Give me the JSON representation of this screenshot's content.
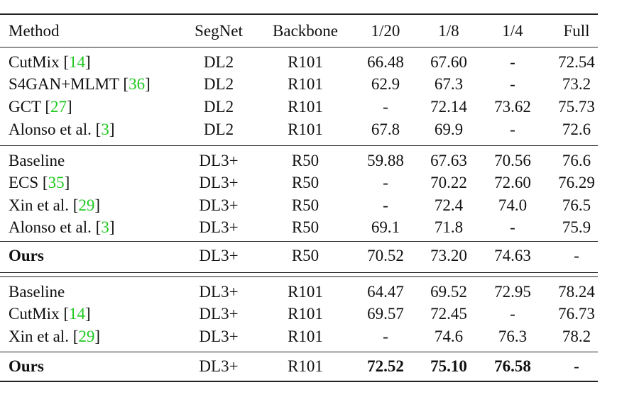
{
  "table": {
    "header": [
      "Method",
      "SegNet",
      "Backbone",
      "1/20",
      "1/8",
      "1/4",
      "Full"
    ],
    "rows": [
      {
        "method": [
          "CutMix [",
          "14",
          "]"
        ],
        "cells": [
          "DL2",
          "R101",
          "66.48",
          "67.60",
          "-",
          "72.54"
        ]
      },
      {
        "method": [
          "S4GAN+MLMT [",
          "36",
          "]"
        ],
        "cells": [
          "DL2",
          "R101",
          "62.9",
          "67.3",
          "-",
          "73.2"
        ]
      },
      {
        "method": [
          "GCT [",
          "27",
          "]"
        ],
        "cells": [
          "DL2",
          "R101",
          "-",
          "72.14",
          "73.62",
          "75.73"
        ]
      },
      {
        "method": [
          "Alonso et al. [",
          "3",
          "]"
        ],
        "cells": [
          "DL2",
          "R101",
          "67.8",
          "69.9",
          "-",
          "72.6"
        ]
      },
      {
        "method": [
          "Baseline"
        ],
        "cells": [
          "DL3+",
          "R50",
          "59.88",
          "67.63",
          "70.56",
          "76.6"
        ]
      },
      {
        "method": [
          "ECS [",
          "35",
          "]"
        ],
        "cells": [
          "DL3+",
          "R50",
          "-",
          "70.22",
          "72.60",
          "76.29"
        ]
      },
      {
        "method": [
          "Xin et al. [",
          "29",
          "]"
        ],
        "cells": [
          "DL3+",
          "R50",
          "-",
          "72.4",
          "74.0",
          "76.5"
        ]
      },
      {
        "method": [
          "Alonso et al. [",
          "3",
          "]"
        ],
        "cells": [
          "DL3+",
          "R50",
          "69.1",
          "71.8",
          "-",
          "75.9"
        ]
      },
      {
        "method": [
          "Ours"
        ],
        "cells": [
          "DL3+",
          "R50",
          "70.52",
          "73.20",
          "74.63",
          "-"
        ]
      },
      {
        "method": [
          "Baseline"
        ],
        "cells": [
          "DL3+",
          "R101",
          "64.47",
          "69.52",
          "72.95",
          "78.24"
        ]
      },
      {
        "method": [
          "CutMix [",
          "14",
          "]"
        ],
        "cells": [
          "DL3+",
          "R101",
          "69.57",
          "72.45",
          "-",
          "76.73"
        ]
      },
      {
        "method": [
          "Xin et al. [",
          "29",
          "]"
        ],
        "cells": [
          "DL3+",
          "R101",
          "-",
          "74.6",
          "76.3",
          "78.2"
        ]
      },
      {
        "method": [
          "Ours"
        ],
        "cells": [
          "DL3+",
          "R101",
          "72.52",
          "75.10",
          "76.58",
          "-"
        ]
      }
    ]
  }
}
